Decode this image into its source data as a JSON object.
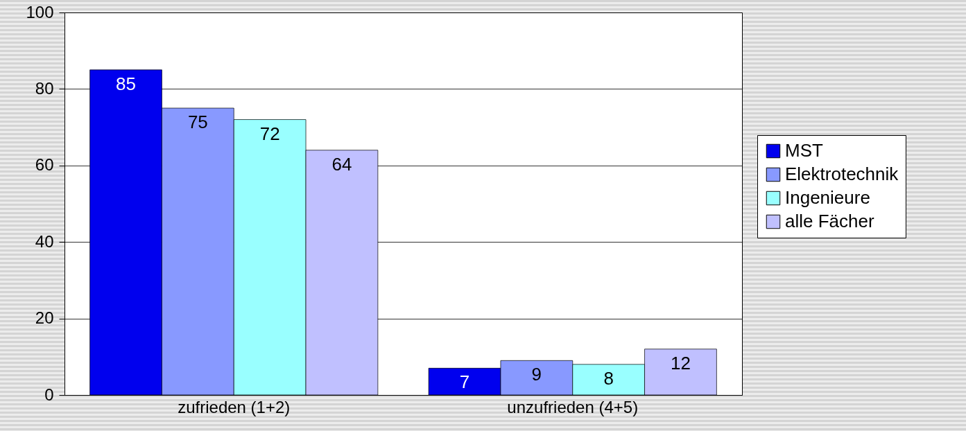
{
  "chart_data": {
    "type": "bar",
    "categories": [
      "zufrieden (1+2)",
      "unzufrieden (4+5)"
    ],
    "series": [
      {
        "name": "MST",
        "color": "#0000ee",
        "values": [
          85,
          7
        ]
      },
      {
        "name": "Elektrotechnik",
        "color": "#8899ff",
        "values": [
          75,
          9
        ]
      },
      {
        "name": "Ingenieure",
        "color": "#99ffff",
        "values": [
          72,
          8
        ]
      },
      {
        "name": "alle Fächer",
        "color": "#c0c0ff",
        "values": [
          64,
          12
        ]
      }
    ],
    "ylim": [
      0,
      100
    ],
    "yticks": [
      0,
      20,
      40,
      60,
      80,
      100
    ],
    "grid": "y",
    "legend": "right",
    "data_labels": true
  }
}
